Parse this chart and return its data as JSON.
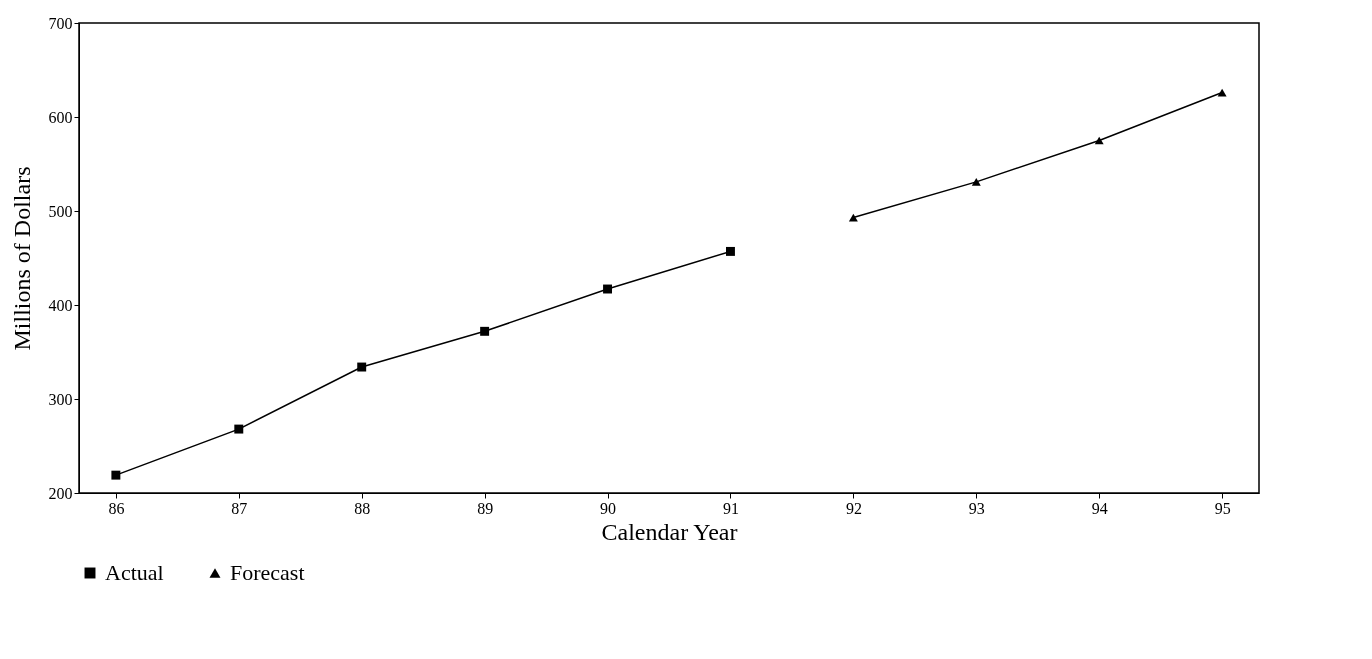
{
  "chart_data": {
    "type": "line",
    "xlabel": "Calendar Year",
    "ylabel": "Millions of Dollars",
    "xlim": [
      85.7,
      95.3
    ],
    "xticks": [
      86,
      87,
      88,
      89,
      90,
      91,
      92,
      93,
      94,
      95
    ],
    "ylim": [
      200,
      700
    ],
    "yticks": [
      200,
      300,
      400,
      500,
      600,
      700
    ],
    "grid": false,
    "legend": "bottom",
    "line_style": "solid",
    "series": [
      {
        "name": "Actual",
        "color": "#000000",
        "marker": "square",
        "x": [
          86,
          87,
          88,
          89,
          90,
          91
        ],
        "values": [
          219,
          268,
          334,
          372,
          417,
          457
        ]
      },
      {
        "name": "Forecast",
        "color": "#000000",
        "marker": "triangle",
        "x": [
          92,
          93,
          94,
          95
        ],
        "values": [
          493,
          531,
          575,
          626
        ]
      }
    ]
  }
}
